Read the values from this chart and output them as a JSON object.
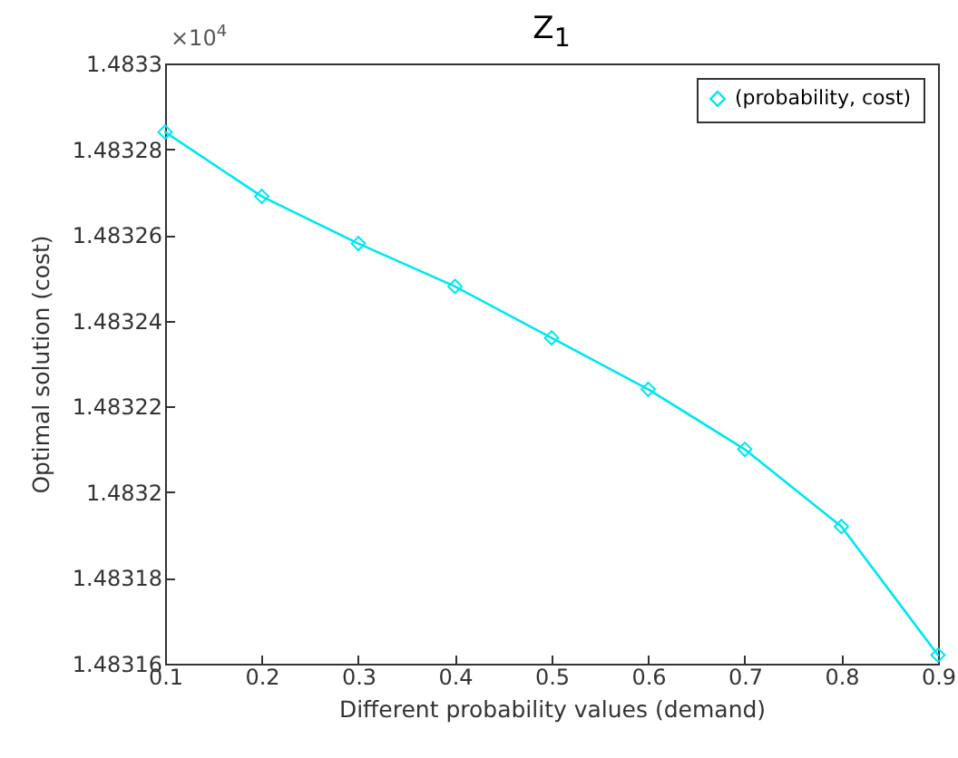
{
  "chart_data": {
    "type": "line",
    "title": "Z$_{1}$",
    "xlabel": "Different probability values (demand)",
    "ylabel": "Optimal solution (cost)",
    "annotations": [
      "×10$^{4}$"
    ],
    "x": [
      0.1,
      0.2,
      0.3,
      0.4,
      0.5,
      0.6,
      0.7,
      0.8,
      0.9
    ],
    "series": [
      {
        "name": "(probability, cost)",
        "color": "#00e6f0",
        "values": [
          1.483284,
          1.483269,
          1.483258,
          1.483248,
          1.483236,
          1.483224,
          1.48321,
          1.483192,
          1.483162
        ]
      }
    ],
    "xlim": [
      0.1,
      0.9
    ],
    "xticks": [
      0.1,
      0.2,
      0.3,
      0.4,
      0.5,
      0.6,
      0.7,
      0.8,
      0.9
    ],
    "ylim": [
      1.48316,
      1.4833
    ],
    "yticks": [
      1.48316,
      1.48318,
      1.4832,
      1.48322,
      1.48324,
      1.48326,
      1.48328,
      1.4833
    ],
    "grid": false,
    "legend": "top right",
    "marker": "diamond",
    "line_style": "solid"
  }
}
